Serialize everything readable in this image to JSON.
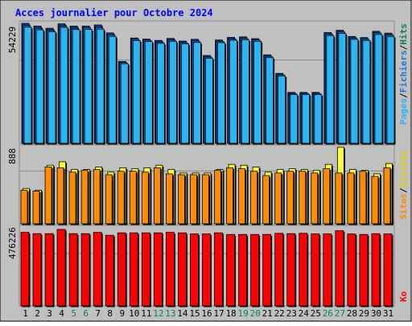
{
  "title": "Acces journalier pour Octobre 2024",
  "colors": {
    "background": "#c0c0c0",
    "title": "#0000ff",
    "pages": "#2bb5f3",
    "files": "#1677dd",
    "hits": "#00805c",
    "visits": "#ffff33",
    "sites": "#ff8c00",
    "kbytes": "#ff0000",
    "weekend_day": "#00805c",
    "day": "#000000"
  },
  "legend_top": {
    "pages": "Pages",
    "sep1": "/",
    "files": "Fichiers",
    "sep2": "/",
    "hits": "Hits"
  },
  "legend_mid": {
    "sites": "Sites",
    "sep": "/",
    "visits": "Visites"
  },
  "legend_bottom": {
    "kbytes": "Ko"
  },
  "axis_labels": {
    "top": "54229",
    "middle": "888",
    "bottom": "476226"
  },
  "chart_data": [
    {
      "type": "bar",
      "title": "Acces journalier pour Octobre 2024",
      "categories": [
        "1",
        "2",
        "3",
        "4",
        "5",
        "6",
        "7",
        "8",
        "9",
        "10",
        "11",
        "12",
        "13",
        "14",
        "15",
        "16",
        "17",
        "18",
        "19",
        "20",
        "21",
        "22",
        "23",
        "24",
        "25",
        "26",
        "27",
        "28",
        "29",
        "30",
        "31"
      ],
      "weekend_days": [
        "5",
        "6",
        "12",
        "13",
        "19",
        "20",
        "26",
        "27"
      ],
      "ylim": [
        0,
        54229
      ],
      "series": [
        {
          "name": "Hits",
          "values": [
            54229,
            53000,
            52000,
            54000,
            53000,
            53000,
            53500,
            49900,
            37000,
            47600,
            47100,
            46500,
            47400,
            46200,
            47000,
            39700,
            46700,
            47900,
            48100,
            47300,
            40000,
            31600,
            23000,
            23000,
            23000,
            50100,
            51100,
            48300,
            47800,
            50600,
            49800
          ]
        },
        {
          "name": "Fichiers",
          "values": [
            53200,
            52000,
            51000,
            53000,
            52000,
            52200,
            52400,
            49000,
            36500,
            47000,
            46600,
            45800,
            46700,
            45500,
            46300,
            39000,
            46100,
            47200,
            47400,
            46700,
            39300,
            31000,
            22500,
            22500,
            22500,
            49300,
            50300,
            47600,
            47100,
            49900,
            49000
          ]
        },
        {
          "name": "Pages",
          "values": [
            52500,
            51300,
            50500,
            52400,
            51400,
            51500,
            51600,
            48300,
            36000,
            46400,
            46000,
            45200,
            46100,
            45000,
            45600,
            38500,
            45500,
            46600,
            46800,
            46100,
            38800,
            30500,
            22100,
            22100,
            22100,
            48700,
            49700,
            47000,
            46500,
            49200,
            48300
          ]
        }
      ]
    },
    {
      "type": "bar",
      "categories": [
        "1",
        "2",
        "3",
        "4",
        "5",
        "6",
        "7",
        "8",
        "9",
        "10",
        "11",
        "12",
        "13",
        "14",
        "15",
        "16",
        "17",
        "18",
        "19",
        "20",
        "21",
        "22",
        "23",
        "24",
        "25",
        "26",
        "27",
        "28",
        "29",
        "30",
        "31"
      ],
      "ylim": [
        0,
        888
      ],
      "series": [
        {
          "name": "Visites",
          "values": [
            410,
            390,
            680,
            720,
            630,
            630,
            660,
            600,
            650,
            640,
            650,
            680,
            630,
            590,
            590,
            590,
            630,
            690,
            680,
            660,
            600,
            630,
            640,
            630,
            620,
            690,
            888,
            630,
            620,
            580,
            700
          ]
        },
        {
          "name": "Sites",
          "values": [
            390,
            380,
            660,
            650,
            600,
            620,
            630,
            570,
            610,
            610,
            600,
            650,
            580,
            570,
            570,
            570,
            620,
            650,
            640,
            610,
            560,
            590,
            610,
            610,
            590,
            640,
            590,
            590,
            610,
            550,
            650
          ]
        }
      ]
    },
    {
      "type": "bar",
      "categories": [
        "1",
        "2",
        "3",
        "4",
        "5",
        "6",
        "7",
        "8",
        "9",
        "10",
        "11",
        "12",
        "13",
        "14",
        "15",
        "16",
        "17",
        "18",
        "19",
        "20",
        "21",
        "22",
        "23",
        "24",
        "25",
        "26",
        "27",
        "28",
        "29",
        "30",
        "31"
      ],
      "ylim": [
        0,
        476226
      ],
      "series": [
        {
          "name": "Ko",
          "values": [
            458000,
            450000,
            450000,
            476226,
            450000,
            450000,
            458000,
            440000,
            455000,
            455000,
            455000,
            455000,
            458000,
            455000,
            448000,
            448000,
            455000,
            445000,
            445000,
            445000,
            445000,
            452000,
            450000,
            452000,
            448000,
            448000,
            468000,
            448000,
            445000,
            450000,
            448000
          ]
        }
      ]
    }
  ]
}
